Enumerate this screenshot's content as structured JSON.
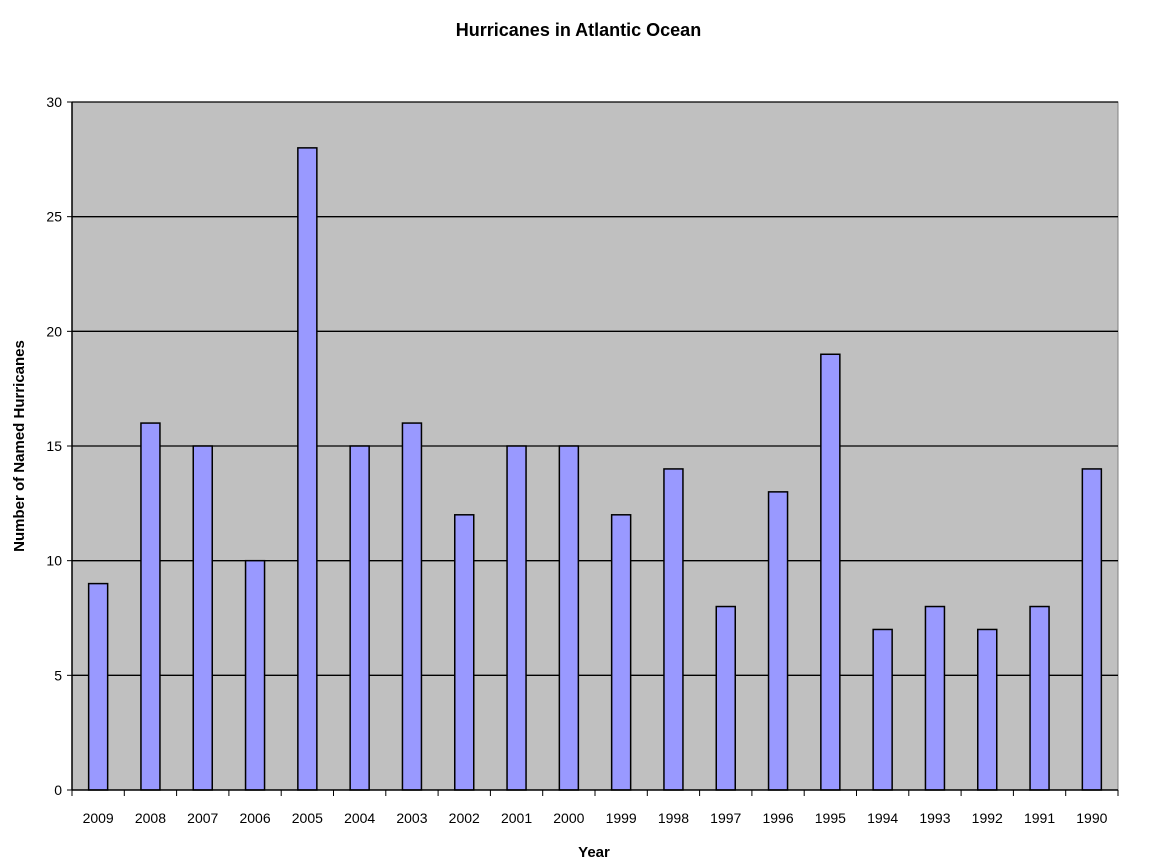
{
  "chart_data": {
    "type": "bar",
    "title": "Hurricanes in Atlantic Ocean",
    "xlabel": "Year",
    "ylabel": "Number of Named Hurricanes",
    "categories": [
      "2009",
      "2008",
      "2007",
      "2006",
      "2005",
      "2004",
      "2003",
      "2002",
      "2001",
      "2000",
      "1999",
      "1998",
      "1997",
      "1996",
      "1995",
      "1994",
      "1993",
      "1992",
      "1991",
      "1990"
    ],
    "series": [
      {
        "values": [
          9,
          16,
          15,
          10,
          28,
          15,
          16,
          12,
          15,
          15,
          12,
          14,
          8,
          13,
          19,
          7,
          8,
          7,
          8,
          14
        ]
      }
    ],
    "ylim": [
      0,
      30
    ],
    "yticks": [
      0,
      5,
      10,
      15,
      20,
      25,
      30
    ],
    "grid": true,
    "legend": "none",
    "colors": {
      "bar_fill": "#9999ff",
      "bar_stroke": "#000000",
      "plot_background": "#c0c0c0",
      "gridline": "#000000",
      "page_background": "#ffffff"
    }
  }
}
